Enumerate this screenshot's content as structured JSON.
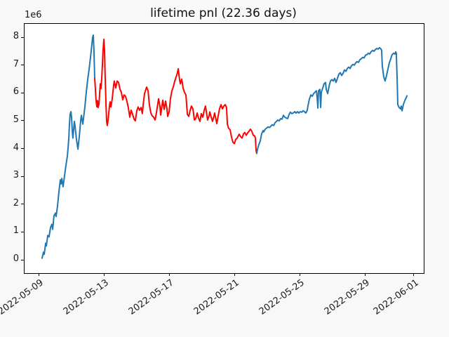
{
  "figure": {
    "title": "lifetime pnl (22.36 days)",
    "offset_label": "1e6",
    "background": "#f8f8f8",
    "plot_background": "#ffffff",
    "spine_color": "#000000"
  },
  "chart_data": {
    "type": "line",
    "title": "lifetime pnl (22.36 days)",
    "xlabel": "",
    "ylabel": "",
    "y_offset_text": "1e6",
    "grid": false,
    "legend": "none",
    "x_axis": {
      "unit": "date",
      "day0_date": "2022-05-09",
      "tick_days": [
        0,
        4,
        8,
        12,
        16,
        20,
        23
      ],
      "tick_labels": [
        "2022-05-09",
        "2022-05-13",
        "2022-05-17",
        "2022-05-21",
        "2022-05-25",
        "2022-05-29",
        "2022-06-01"
      ],
      "range_days": [
        -0.903,
        23.57
      ]
    },
    "y_axis": {
      "unit": "1e6",
      "tick_values": [
        0,
        1,
        2,
        3,
        4,
        5,
        6,
        7,
        8
      ],
      "tick_labels": [
        "0",
        "1",
        "2",
        "3",
        "4",
        "5",
        "6",
        "7",
        "8"
      ],
      "range": [
        -0.454,
        8.505
      ]
    },
    "series": [
      {
        "name": "pnl-segment-1",
        "color": "#1f77b4",
        "points": [
          [
            0.17,
            0.08
          ],
          [
            0.26,
            0.3
          ],
          [
            0.3,
            0.22
          ],
          [
            0.39,
            0.62
          ],
          [
            0.43,
            0.52
          ],
          [
            0.52,
            0.9
          ],
          [
            0.6,
            0.85
          ],
          [
            0.69,
            1.18
          ],
          [
            0.77,
            1.3
          ],
          [
            0.82,
            1.12
          ],
          [
            0.9,
            1.6
          ],
          [
            0.99,
            1.7
          ],
          [
            1.03,
            1.58
          ],
          [
            1.12,
            1.95
          ],
          [
            1.2,
            2.45
          ],
          [
            1.29,
            2.9
          ],
          [
            1.33,
            2.75
          ],
          [
            1.38,
            2.95
          ],
          [
            1.46,
            2.65
          ],
          [
            1.55,
            3.05
          ],
          [
            1.63,
            3.4
          ],
          [
            1.72,
            3.75
          ],
          [
            1.76,
            4.0
          ],
          [
            1.81,
            4.4
          ],
          [
            1.85,
            4.9
          ],
          [
            1.89,
            5.25
          ],
          [
            1.94,
            5.35
          ],
          [
            1.98,
            5.15
          ],
          [
            2.02,
            4.65
          ],
          [
            2.06,
            4.4
          ],
          [
            2.15,
            5.0
          ],
          [
            2.19,
            4.85
          ],
          [
            2.28,
            4.35
          ],
          [
            2.37,
            4.0
          ],
          [
            2.45,
            4.45
          ],
          [
            2.54,
            5.05
          ],
          [
            2.58,
            5.22
          ],
          [
            2.67,
            4.9
          ],
          [
            2.71,
            5.1
          ],
          [
            2.8,
            5.55
          ],
          [
            2.88,
            6.05
          ],
          [
            2.97,
            6.5
          ],
          [
            3.05,
            6.85
          ],
          [
            3.14,
            7.3
          ],
          [
            3.23,
            7.8
          ],
          [
            3.27,
            8.02
          ],
          [
            3.31,
            8.1
          ],
          [
            3.35,
            7.55
          ],
          [
            3.4,
            6.55
          ]
        ]
      },
      {
        "name": "pnl-segment-2",
        "color": "#ff0000",
        "points": [
          [
            3.4,
            6.55
          ],
          [
            3.44,
            6.15
          ],
          [
            3.48,
            5.75
          ],
          [
            3.53,
            5.52
          ],
          [
            3.57,
            5.75
          ],
          [
            3.61,
            5.5
          ],
          [
            3.66,
            5.62
          ],
          [
            3.7,
            6.0
          ],
          [
            3.74,
            6.35
          ],
          [
            3.78,
            6.18
          ],
          [
            3.83,
            6.55
          ],
          [
            3.87,
            7.05
          ],
          [
            3.91,
            7.55
          ],
          [
            3.96,
            7.95
          ],
          [
            4.0,
            7.55
          ],
          [
            4.04,
            6.6
          ],
          [
            4.09,
            5.6
          ],
          [
            4.13,
            5.0
          ],
          [
            4.17,
            4.85
          ],
          [
            4.22,
            5.05
          ],
          [
            4.3,
            5.55
          ],
          [
            4.34,
            5.7
          ],
          [
            4.39,
            5.52
          ],
          [
            4.47,
            5.8
          ],
          [
            4.56,
            6.3
          ],
          [
            4.6,
            6.45
          ],
          [
            4.69,
            6.2
          ],
          [
            4.77,
            6.45
          ],
          [
            4.86,
            6.4
          ],
          [
            4.95,
            6.15
          ],
          [
            5.03,
            6.05
          ],
          [
            5.12,
            5.78
          ],
          [
            5.2,
            5.95
          ],
          [
            5.29,
            5.9
          ],
          [
            5.38,
            5.7
          ],
          [
            5.46,
            5.5
          ],
          [
            5.55,
            5.15
          ],
          [
            5.63,
            5.4
          ],
          [
            5.72,
            5.25
          ],
          [
            5.81,
            5.08
          ],
          [
            5.89,
            5.02
          ],
          [
            5.98,
            5.38
          ],
          [
            6.06,
            5.52
          ],
          [
            6.15,
            5.4
          ],
          [
            6.24,
            5.5
          ],
          [
            6.32,
            5.28
          ],
          [
            6.37,
            5.6
          ],
          [
            6.45,
            6.0
          ],
          [
            6.58,
            6.23
          ],
          [
            6.67,
            6.1
          ],
          [
            6.75,
            5.6
          ],
          [
            6.84,
            5.3
          ],
          [
            6.92,
            5.2
          ],
          [
            7.01,
            5.15
          ],
          [
            7.1,
            5.05
          ],
          [
            7.18,
            5.3
          ],
          [
            7.31,
            5.81
          ],
          [
            7.4,
            5.55
          ],
          [
            7.44,
            5.23
          ],
          [
            7.53,
            5.6
          ],
          [
            7.57,
            5.76
          ],
          [
            7.66,
            5.43
          ],
          [
            7.74,
            5.73
          ],
          [
            7.83,
            5.45
          ],
          [
            7.87,
            5.18
          ],
          [
            7.96,
            5.35
          ],
          [
            8.04,
            5.8
          ],
          [
            8.13,
            6.1
          ],
          [
            8.22,
            6.25
          ],
          [
            8.3,
            6.44
          ],
          [
            8.39,
            6.6
          ],
          [
            8.47,
            6.75
          ],
          [
            8.52,
            6.89
          ],
          [
            8.56,
            6.7
          ],
          [
            8.6,
            6.5
          ],
          [
            8.65,
            6.35
          ],
          [
            8.73,
            6.52
          ],
          [
            8.82,
            6.18
          ],
          [
            8.9,
            6.05
          ],
          [
            8.99,
            5.95
          ],
          [
            9.08,
            5.25
          ],
          [
            9.16,
            5.18
          ],
          [
            9.25,
            5.4
          ],
          [
            9.33,
            5.55
          ],
          [
            9.42,
            5.45
          ],
          [
            9.51,
            5.05
          ],
          [
            9.59,
            5.1
          ],
          [
            9.68,
            5.3
          ],
          [
            9.76,
            5.12
          ],
          [
            9.85,
            5.0
          ],
          [
            9.93,
            5.28
          ],
          [
            10.02,
            5.15
          ],
          [
            10.11,
            5.4
          ],
          [
            10.19,
            5.55
          ],
          [
            10.28,
            5.2
          ],
          [
            10.32,
            5.05
          ],
          [
            10.41,
            5.2
          ],
          [
            10.45,
            5.34
          ],
          [
            10.54,
            5.15
          ],
          [
            10.62,
            5.0
          ],
          [
            10.71,
            5.2
          ],
          [
            10.75,
            5.3
          ],
          [
            10.84,
            5.05
          ],
          [
            10.88,
            4.92
          ],
          [
            10.97,
            5.2
          ],
          [
            11.05,
            5.45
          ],
          [
            11.14,
            5.6
          ],
          [
            11.23,
            5.45
          ],
          [
            11.31,
            5.55
          ],
          [
            11.4,
            5.6
          ],
          [
            11.48,
            5.5
          ],
          [
            11.53,
            4.9
          ],
          [
            11.61,
            4.75
          ],
          [
            11.7,
            4.7
          ],
          [
            11.78,
            4.45
          ],
          [
            11.87,
            4.25
          ],
          [
            11.96,
            4.2
          ],
          [
            12.04,
            4.35
          ],
          [
            12.13,
            4.4
          ],
          [
            12.22,
            4.5
          ],
          [
            12.26,
            4.54
          ],
          [
            12.34,
            4.45
          ],
          [
            12.43,
            4.4
          ],
          [
            12.52,
            4.55
          ],
          [
            12.6,
            4.6
          ],
          [
            12.69,
            4.5
          ],
          [
            12.77,
            4.58
          ],
          [
            12.86,
            4.65
          ],
          [
            12.94,
            4.72
          ],
          [
            13.03,
            4.65
          ],
          [
            13.12,
            4.5
          ],
          [
            13.2,
            4.48
          ],
          [
            13.25,
            4.4
          ],
          [
            13.29,
            3.95
          ],
          [
            13.33,
            3.85
          ]
        ]
      },
      {
        "name": "pnl-segment-3",
        "color": "#1f77b4",
        "points": [
          [
            13.33,
            3.85
          ],
          [
            13.38,
            4.0
          ],
          [
            13.46,
            4.16
          ],
          [
            13.55,
            4.3
          ],
          [
            13.63,
            4.55
          ],
          [
            13.72,
            4.67
          ],
          [
            13.76,
            4.62
          ],
          [
            13.85,
            4.72
          ],
          [
            13.94,
            4.76
          ],
          [
            14.02,
            4.8
          ],
          [
            14.11,
            4.78
          ],
          [
            14.19,
            4.82
          ],
          [
            14.28,
            4.88
          ],
          [
            14.37,
            4.85
          ],
          [
            14.45,
            4.95
          ],
          [
            14.54,
            5.0
          ],
          [
            14.62,
            5.05
          ],
          [
            14.71,
            5.02
          ],
          [
            14.8,
            5.1
          ],
          [
            14.88,
            5.08
          ],
          [
            14.97,
            5.22
          ],
          [
            15.05,
            5.15
          ],
          [
            15.14,
            5.12
          ],
          [
            15.23,
            5.1
          ],
          [
            15.31,
            5.25
          ],
          [
            15.4,
            5.33
          ],
          [
            15.48,
            5.28
          ],
          [
            15.57,
            5.3
          ],
          [
            15.66,
            5.35
          ],
          [
            15.74,
            5.3
          ],
          [
            15.83,
            5.35
          ],
          [
            15.91,
            5.3
          ],
          [
            16.0,
            5.35
          ],
          [
            16.09,
            5.33
          ],
          [
            16.17,
            5.38
          ],
          [
            16.26,
            5.35
          ],
          [
            16.34,
            5.3
          ],
          [
            16.43,
            5.4
          ],
          [
            16.47,
            5.55
          ],
          [
            16.56,
            5.8
          ],
          [
            16.65,
            5.95
          ],
          [
            16.73,
            5.9
          ],
          [
            16.82,
            6.0
          ],
          [
            16.9,
            6.05
          ],
          [
            16.99,
            6.1
          ],
          [
            17.03,
            5.9
          ],
          [
            17.08,
            5.48
          ],
          [
            17.12,
            6.1
          ],
          [
            17.2,
            6.15
          ],
          [
            17.25,
            5.5
          ],
          [
            17.29,
            6.05
          ],
          [
            17.38,
            6.2
          ],
          [
            17.46,
            6.35
          ],
          [
            17.55,
            6.4
          ],
          [
            17.59,
            6.15
          ],
          [
            17.68,
            6.0
          ],
          [
            17.76,
            6.25
          ],
          [
            17.85,
            6.45
          ],
          [
            17.94,
            6.5
          ],
          [
            18.02,
            6.45
          ],
          [
            18.11,
            6.55
          ],
          [
            18.19,
            6.4
          ],
          [
            18.28,
            6.55
          ],
          [
            18.37,
            6.7
          ],
          [
            18.45,
            6.75
          ],
          [
            18.54,
            6.65
          ],
          [
            18.62,
            6.72
          ],
          [
            18.71,
            6.85
          ],
          [
            18.8,
            6.8
          ],
          [
            18.88,
            6.9
          ],
          [
            18.97,
            6.95
          ],
          [
            19.05,
            6.9
          ],
          [
            19.14,
            7.0
          ],
          [
            19.23,
            7.05
          ],
          [
            19.31,
            7.02
          ],
          [
            19.4,
            7.1
          ],
          [
            19.48,
            7.15
          ],
          [
            19.57,
            7.12
          ],
          [
            19.66,
            7.22
          ],
          [
            19.74,
            7.25
          ],
          [
            19.83,
            7.3
          ],
          [
            19.91,
            7.28
          ],
          [
            20.0,
            7.38
          ],
          [
            20.09,
            7.4
          ],
          [
            20.17,
            7.45
          ],
          [
            20.26,
            7.42
          ],
          [
            20.34,
            7.5
          ],
          [
            20.43,
            7.55
          ],
          [
            20.52,
            7.52
          ],
          [
            20.6,
            7.58
          ],
          [
            20.69,
            7.62
          ],
          [
            20.77,
            7.6
          ],
          [
            20.86,
            7.65
          ],
          [
            20.95,
            7.6
          ],
          [
            20.99,
            7.55
          ],
          [
            21.03,
            7.0
          ],
          [
            21.12,
            6.6
          ],
          [
            21.2,
            6.45
          ],
          [
            21.29,
            6.65
          ],
          [
            21.38,
            6.9
          ],
          [
            21.46,
            7.1
          ],
          [
            21.55,
            7.25
          ],
          [
            21.63,
            7.4
          ],
          [
            21.72,
            7.45
          ],
          [
            21.81,
            7.42
          ],
          [
            21.85,
            7.5
          ],
          [
            21.89,
            7.45
          ],
          [
            21.94,
            6.5
          ],
          [
            21.98,
            5.6
          ],
          [
            22.06,
            5.5
          ],
          [
            22.15,
            5.45
          ],
          [
            22.19,
            5.55
          ],
          [
            22.24,
            5.38
          ],
          [
            22.32,
            5.6
          ],
          [
            22.41,
            5.75
          ],
          [
            22.45,
            5.8
          ],
          [
            22.49,
            5.85
          ],
          [
            22.54,
            5.92
          ]
        ]
      }
    ]
  }
}
